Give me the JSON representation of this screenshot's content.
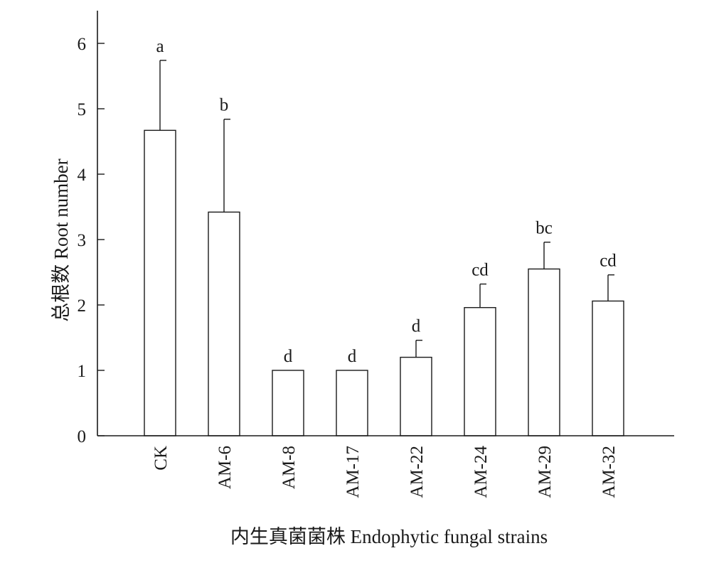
{
  "chart_data": {
    "type": "bar",
    "title": "",
    "xlabel": "内生真菌菌株 Endophytic fungal strains",
    "ylabel": "总根数 Root number",
    "ylim": [
      0,
      6.5
    ],
    "yticks": [
      "0",
      "1",
      "2",
      "3",
      "4",
      "5",
      "6"
    ],
    "grid": false,
    "categories": [
      "CK",
      "AM-6",
      "AM-8",
      "AM-17",
      "AM-22",
      "AM-24",
      "AM-29",
      "AM-32"
    ],
    "values": [
      4.67,
      3.42,
      1.0,
      1.0,
      1.2,
      1.96,
      2.55,
      2.06
    ],
    "error_upper": [
      1.07,
      1.42,
      0,
      0,
      0.26,
      0.36,
      0.41,
      0.4
    ],
    "significance": [
      "a",
      "b",
      "d",
      "d",
      "d",
      "cd",
      "bc",
      "cd"
    ]
  }
}
